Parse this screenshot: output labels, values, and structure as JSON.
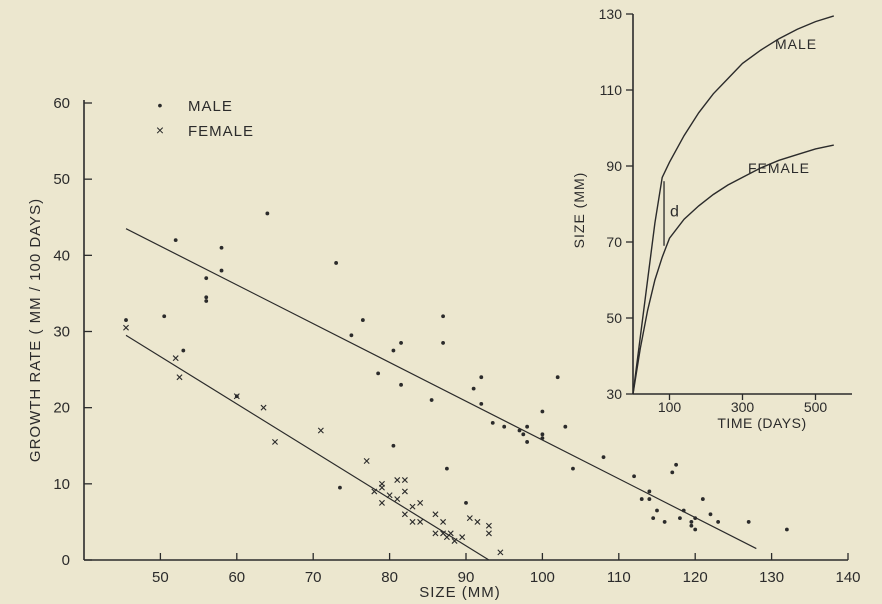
{
  "ink": "#2b2b2b",
  "paper": "#ece7cf",
  "chart_data": [
    {
      "type": "scatter",
      "xlabel": "SIZE  (MM)",
      "ylabel": "GROWTH  RATE   ( MM / 100  DAYS)",
      "xlim": [
        40,
        140
      ],
      "ylim": [
        0,
        60
      ],
      "xticks": [
        "50",
        "60",
        "70",
        "80",
        "90",
        "100",
        "110",
        "120",
        "130",
        "140"
      ],
      "yticks": [
        "0",
        "10",
        "20",
        "30",
        "40",
        "50",
        "60"
      ],
      "legend": [
        {
          "symbol": "•",
          "label": "MALE"
        },
        {
          "symbol": "×",
          "label": "FEMALE"
        }
      ],
      "series": [
        {
          "name": "MALE",
          "marker": "dot",
          "points": [
            [
              45.5,
              31.5
            ],
            [
              50.5,
              32
            ],
            [
              52,
              42
            ],
            [
              53,
              27.5
            ],
            [
              56,
              37
            ],
            [
              56,
              34.5
            ],
            [
              56,
              34
            ],
            [
              58,
              41
            ],
            [
              58,
              38
            ],
            [
              60,
              21.5
            ],
            [
              64,
              45.5
            ],
            [
              73,
              39
            ],
            [
              73.5,
              9.5
            ],
            [
              75,
              29.5
            ],
            [
              76.5,
              31.5
            ],
            [
              78.5,
              24.5
            ],
            [
              80.5,
              15
            ],
            [
              80.5,
              27.5
            ],
            [
              81.5,
              23
            ],
            [
              81.5,
              28.5
            ],
            [
              85.5,
              21
            ],
            [
              87,
              32
            ],
            [
              87,
              28.5
            ],
            [
              87.5,
              12
            ],
            [
              90,
              7.5
            ],
            [
              91,
              22.5
            ],
            [
              92,
              24
            ],
            [
              92,
              20.5
            ],
            [
              93.5,
              18
            ],
            [
              95,
              17.5
            ],
            [
              97,
              17
            ],
            [
              97.5,
              16.5
            ],
            [
              98,
              17.5
            ],
            [
              98,
              15.5
            ],
            [
              100,
              19.5
            ],
            [
              100,
              16.5
            ],
            [
              100,
              16
            ],
            [
              102,
              24
            ],
            [
              103,
              17.5
            ],
            [
              104,
              12
            ],
            [
              108,
              13.5
            ],
            [
              112,
              11
            ],
            [
              113,
              8
            ],
            [
              114,
              9
            ],
            [
              114,
              8
            ],
            [
              114.5,
              5.5
            ],
            [
              115,
              6.5
            ],
            [
              116,
              5
            ],
            [
              117,
              11.5
            ],
            [
              117.5,
              12.5
            ],
            [
              118,
              5.5
            ],
            [
              118.5,
              6.5
            ],
            [
              119.5,
              5
            ],
            [
              119.5,
              4.5
            ],
            [
              120,
              5.5
            ],
            [
              120,
              4
            ],
            [
              121,
              8
            ],
            [
              122,
              6
            ],
            [
              123,
              5
            ],
            [
              127,
              5
            ],
            [
              132,
              4
            ]
          ]
        },
        {
          "name": "FEMALE",
          "marker": "cross",
          "points": [
            [
              45.5,
              30.5
            ],
            [
              52,
              26.5
            ],
            [
              52.5,
              24
            ],
            [
              60,
              21.5
            ],
            [
              63.5,
              20
            ],
            [
              65,
              15.5
            ],
            [
              71,
              17
            ],
            [
              77,
              13
            ],
            [
              78,
              9
            ],
            [
              79,
              10
            ],
            [
              79,
              9.5
            ],
            [
              79,
              7.5
            ],
            [
              80,
              8.5
            ],
            [
              81,
              10.5
            ],
            [
              81,
              8
            ],
            [
              82,
              10.5
            ],
            [
              82,
              9
            ],
            [
              82,
              6
            ],
            [
              83,
              7
            ],
            [
              83,
              5
            ],
            [
              84,
              7.5
            ],
            [
              84,
              5
            ],
            [
              86,
              6
            ],
            [
              86,
              3.5
            ],
            [
              87,
              5
            ],
            [
              87,
              3.5
            ],
            [
              87.5,
              3
            ],
            [
              88,
              3.5
            ],
            [
              88.5,
              2.5
            ],
            [
              89.5,
              3
            ],
            [
              90.5,
              5.5
            ],
            [
              91.5,
              5
            ],
            [
              93,
              4.5
            ],
            [
              93,
              3.5
            ],
            [
              94.5,
              1
            ]
          ]
        }
      ],
      "fit_lines": [
        {
          "name": "MALE",
          "x": [
            45.5,
            128
          ],
          "y": [
            43.5,
            1.5
          ]
        },
        {
          "name": "FEMALE",
          "x": [
            45.5,
            93
          ],
          "y": [
            29.5,
            0
          ]
        }
      ]
    },
    {
      "type": "line",
      "xlabel": "TIME  (DAYS)",
      "ylabel": "SIZE  (MM)",
      "xlim": [
        0,
        600
      ],
      "ylim": [
        30,
        130
      ],
      "xticks": [
        {
          "value": 100,
          "label": "100"
        },
        {
          "value": 300,
          "label": "300"
        },
        {
          "value": 500,
          "label": "500"
        }
      ],
      "yticks": [
        {
          "value": 30,
          "label": "30"
        },
        {
          "value": 50,
          "label": "50"
        },
        {
          "value": 70,
          "label": "70"
        },
        {
          "value": 90,
          "label": "90"
        },
        {
          "value": 110,
          "label": "110"
        },
        {
          "value": 130,
          "label": "130"
        }
      ],
      "series": [
        {
          "name": "MALE",
          "label": "MALE",
          "x": [
            0,
            20,
            40,
            60,
            80,
            100,
            140,
            180,
            220,
            260,
            300,
            350,
            400,
            450,
            500,
            550
          ],
          "y": [
            30,
            45,
            60,
            75,
            87,
            91,
            98,
            104,
            109,
            113,
            117,
            120.5,
            123.5,
            126,
            128,
            129.5
          ]
        },
        {
          "name": "FEMALE",
          "label": "FEMALE",
          "x": [
            0,
            20,
            40,
            60,
            80,
            100,
            140,
            180,
            220,
            260,
            300,
            350,
            400,
            450,
            500,
            550
          ],
          "y": [
            30,
            42,
            52,
            60,
            66,
            71,
            76,
            79.5,
            82.5,
            85,
            87,
            89.5,
            91.5,
            93,
            94.5,
            95.5
          ]
        }
      ],
      "annotation": {
        "text": "d",
        "x": 85,
        "y_top": 86,
        "y_bottom": 69
      }
    }
  ]
}
